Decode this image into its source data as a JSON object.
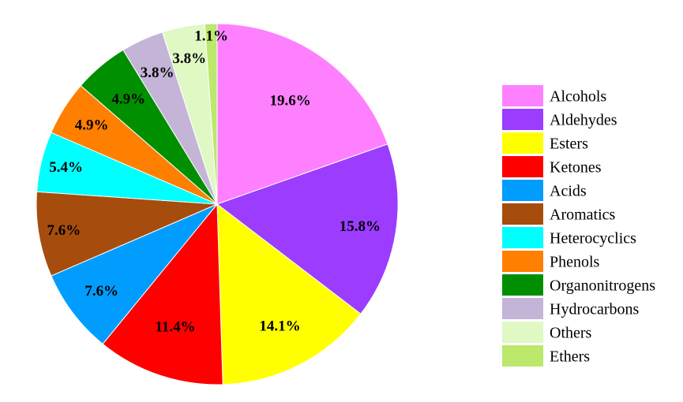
{
  "chart_data": {
    "type": "pie",
    "title": "",
    "legend_position": "right",
    "start_angle_deg": 0,
    "direction": "clockwise",
    "slices": [
      {
        "label": "Alcohols",
        "value": 19.6,
        "display": "19.6%",
        "color": "#ff80ff"
      },
      {
        "label": "Aldehydes",
        "value": 15.8,
        "display": "15.8%",
        "color": "#9b3cff"
      },
      {
        "label": "Esters",
        "value": 14.1,
        "display": "14.1%",
        "color": "#ffff00"
      },
      {
        "label": "Ketones",
        "value": 11.4,
        "display": "11.4%",
        "color": "#ff0000"
      },
      {
        "label": "Acids",
        "value": 7.6,
        "display": "7.6%",
        "color": "#009dff"
      },
      {
        "label": "Aromatics",
        "value": 7.6,
        "display": "7.6%",
        "color": "#a64d0d"
      },
      {
        "label": "Heterocyclics",
        "value": 5.4,
        "display": "5.4%",
        "color": "#00ffff"
      },
      {
        "label": "Phenols",
        "value": 4.9,
        "display": "4.9%",
        "color": "#ff7f00"
      },
      {
        "label": "Organonitrogens",
        "value": 4.9,
        "display": "4.9%",
        "color": "#008f00"
      },
      {
        "label": "Hydrocarbons",
        "value": 3.8,
        "display": "3.8%",
        "color": "#c4b4d8"
      },
      {
        "label": "Others",
        "value": 3.8,
        "display": "3.8%",
        "color": "#e0f8c4"
      },
      {
        "label": "Ethers",
        "value": 1.1,
        "display": "1.1%",
        "color": "#bce86c"
      }
    ]
  }
}
